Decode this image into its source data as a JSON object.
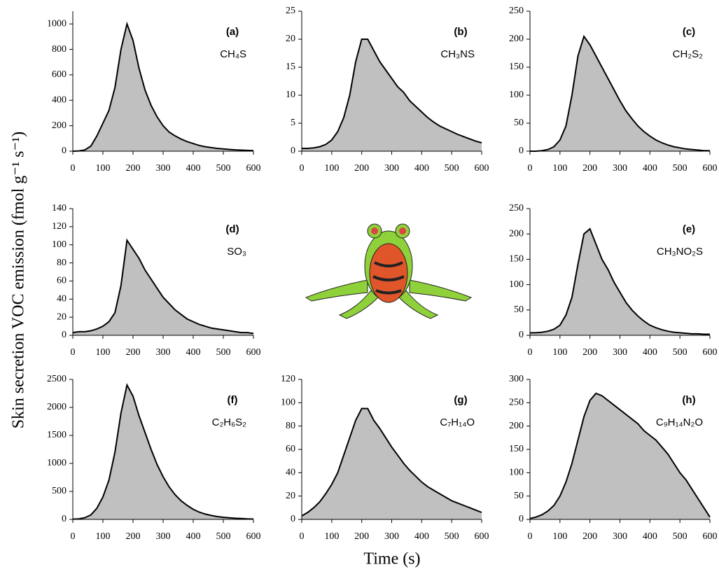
{
  "ylabel": "Skin secretion VOC emission (fmol g⁻¹ s⁻¹)",
  "xlabel": "Time (s)",
  "chart_data": [
    {
      "type": "area",
      "panel": "(a)",
      "label": "CH₄S",
      "color": "#c0c0c0",
      "line_color": "#000000",
      "x": [
        0,
        20,
        40,
        60,
        80,
        100,
        120,
        140,
        160,
        180,
        200,
        220,
        240,
        260,
        280,
        300,
        320,
        340,
        360,
        380,
        400,
        420,
        440,
        460,
        480,
        500,
        520,
        540,
        560,
        580,
        600
      ],
      "values": [
        0,
        2,
        10,
        40,
        120,
        220,
        320,
        500,
        800,
        1000,
        870,
        650,
        480,
        360,
        270,
        200,
        150,
        120,
        95,
        75,
        60,
        45,
        35,
        28,
        22,
        18,
        14,
        10,
        8,
        6,
        5
      ],
      "xlim": [
        0,
        600
      ],
      "xticks": [
        0,
        100,
        200,
        300,
        400,
        500,
        600
      ],
      "ylim": [
        0,
        1100
      ],
      "yticks": [
        0,
        200,
        400,
        600,
        800,
        1000
      ]
    },
    {
      "type": "area",
      "panel": "(b)",
      "label": "CH₃NS",
      "color": "#c0c0c0",
      "line_color": "#000000",
      "x": [
        0,
        20,
        40,
        60,
        80,
        100,
        120,
        140,
        160,
        180,
        200,
        220,
        240,
        260,
        280,
        300,
        320,
        340,
        360,
        380,
        400,
        420,
        440,
        460,
        480,
        500,
        520,
        540,
        560,
        580,
        600
      ],
      "values": [
        0.5,
        0.5,
        0.6,
        0.8,
        1.2,
        2,
        3.5,
        6,
        10,
        16,
        20,
        20,
        18,
        16,
        14.5,
        13,
        11.5,
        10.5,
        9,
        8,
        7,
        6,
        5.2,
        4.5,
        4,
        3.5,
        3,
        2.6,
        2.2,
        1.8,
        1.5
      ],
      "xlim": [
        0,
        600
      ],
      "xticks": [
        0,
        100,
        200,
        300,
        400,
        500,
        600
      ],
      "ylim": [
        0,
        25
      ],
      "yticks": [
        0,
        5,
        10,
        15,
        20,
        25
      ]
    },
    {
      "type": "area",
      "panel": "(c)",
      "label": "CH₂S₂",
      "color": "#c0c0c0",
      "line_color": "#000000",
      "x": [
        0,
        20,
        40,
        60,
        80,
        100,
        120,
        140,
        160,
        180,
        200,
        220,
        240,
        260,
        280,
        300,
        320,
        340,
        360,
        380,
        400,
        420,
        440,
        460,
        480,
        500,
        520,
        540,
        560,
        580,
        600
      ],
      "values": [
        0,
        0,
        1,
        3,
        8,
        20,
        45,
        100,
        170,
        205,
        190,
        170,
        150,
        130,
        110,
        90,
        72,
        58,
        45,
        35,
        27,
        20,
        15,
        11,
        8,
        6,
        4,
        3,
        2,
        1,
        1
      ],
      "xlim": [
        0,
        600
      ],
      "xticks": [
        0,
        100,
        200,
        300,
        400,
        500,
        600
      ],
      "ylim": [
        0,
        250
      ],
      "yticks": [
        0,
        50,
        100,
        150,
        200,
        250
      ]
    },
    {
      "type": "area",
      "panel": "(d)",
      "label": "SO₃",
      "color": "#c0c0c0",
      "line_color": "#000000",
      "x": [
        0,
        20,
        40,
        60,
        80,
        100,
        120,
        140,
        160,
        180,
        200,
        220,
        240,
        260,
        280,
        300,
        320,
        340,
        360,
        380,
        400,
        420,
        440,
        460,
        480,
        500,
        520,
        540,
        560,
        580,
        600
      ],
      "values": [
        3,
        4,
        4,
        5,
        7,
        10,
        15,
        25,
        55,
        105,
        95,
        85,
        72,
        62,
        52,
        42,
        35,
        28,
        23,
        18,
        15,
        12,
        10,
        8,
        7,
        6,
        5,
        4,
        3,
        3,
        2
      ],
      "xlim": [
        0,
        600
      ],
      "xticks": [
        0,
        100,
        200,
        300,
        400,
        500,
        600
      ],
      "ylim": [
        0,
        140
      ],
      "yticks": [
        0,
        20,
        40,
        60,
        80,
        100,
        120,
        140
      ]
    },
    {
      "type": "area",
      "panel": "(e)",
      "label": "CH₃NO₂S",
      "color": "#c0c0c0",
      "line_color": "#000000",
      "x": [
        0,
        20,
        40,
        60,
        80,
        100,
        120,
        140,
        160,
        180,
        200,
        220,
        240,
        260,
        280,
        300,
        320,
        340,
        360,
        380,
        400,
        420,
        440,
        460,
        480,
        500,
        520,
        540,
        560,
        580,
        600
      ],
      "values": [
        5,
        5,
        6,
        8,
        12,
        20,
        40,
        75,
        140,
        200,
        210,
        180,
        150,
        130,
        105,
        85,
        65,
        50,
        38,
        28,
        20,
        15,
        11,
        8,
        6,
        5,
        4,
        3,
        3,
        2,
        2
      ],
      "xlim": [
        0,
        600
      ],
      "xticks": [
        0,
        100,
        200,
        300,
        400,
        500,
        600
      ],
      "ylim": [
        0,
        250
      ],
      "yticks": [
        0,
        50,
        100,
        150,
        200,
        250
      ]
    },
    {
      "type": "area",
      "panel": "(f)",
      "label": "C₂H₆S₂",
      "color": "#c0c0c0",
      "line_color": "#000000",
      "x": [
        0,
        20,
        40,
        60,
        80,
        100,
        120,
        140,
        160,
        180,
        200,
        220,
        240,
        260,
        280,
        300,
        320,
        340,
        360,
        380,
        400,
        420,
        440,
        460,
        480,
        500,
        520,
        540,
        560,
        580,
        600
      ],
      "values": [
        5,
        10,
        30,
        80,
        200,
        400,
        700,
        1200,
        1900,
        2400,
        2200,
        1850,
        1550,
        1250,
        980,
        760,
        580,
        440,
        330,
        250,
        180,
        130,
        95,
        70,
        50,
        38,
        28,
        20,
        15,
        10,
        8
      ],
      "xlim": [
        0,
        600
      ],
      "xticks": [
        0,
        100,
        200,
        300,
        400,
        500,
        600
      ],
      "ylim": [
        0,
        2500
      ],
      "yticks": [
        0,
        500,
        1000,
        1500,
        2000,
        2500
      ]
    },
    {
      "type": "area",
      "panel": "(g)",
      "label": "C₇H₁₄O",
      "color": "#c0c0c0",
      "line_color": "#000000",
      "x": [
        0,
        20,
        40,
        60,
        80,
        100,
        120,
        140,
        160,
        180,
        200,
        220,
        240,
        260,
        280,
        300,
        320,
        340,
        360,
        380,
        400,
        420,
        440,
        460,
        480,
        500,
        520,
        540,
        560,
        580,
        600
      ],
      "values": [
        3,
        6,
        10,
        15,
        22,
        30,
        40,
        55,
        70,
        85,
        95,
        95,
        85,
        78,
        70,
        62,
        55,
        48,
        42,
        37,
        32,
        28,
        25,
        22,
        19,
        16,
        14,
        12,
        10,
        8,
        6
      ],
      "xlim": [
        0,
        600
      ],
      "xticks": [
        0,
        100,
        200,
        300,
        400,
        500,
        600
      ],
      "ylim": [
        0,
        120
      ],
      "yticks": [
        0,
        20,
        40,
        60,
        80,
        100,
        120
      ]
    },
    {
      "type": "area",
      "panel": "(h)",
      "label": "C₉H₁₄N₂O",
      "color": "#c0c0c0",
      "line_color": "#000000",
      "x": [
        0,
        20,
        40,
        60,
        80,
        100,
        120,
        140,
        160,
        180,
        200,
        220,
        240,
        260,
        280,
        300,
        320,
        340,
        360,
        380,
        400,
        420,
        440,
        460,
        480,
        500,
        520,
        540,
        560,
        580,
        600
      ],
      "values": [
        2,
        5,
        10,
        18,
        30,
        50,
        80,
        120,
        170,
        220,
        255,
        270,
        265,
        255,
        245,
        235,
        225,
        215,
        205,
        190,
        180,
        170,
        155,
        140,
        120,
        100,
        85,
        65,
        45,
        25,
        5
      ],
      "xlim": [
        0,
        600
      ],
      "xticks": [
        0,
        100,
        200,
        300,
        400,
        500,
        600
      ],
      "ylim": [
        0,
        300
      ],
      "yticks": [
        0,
        50,
        100,
        150,
        200,
        250,
        300
      ]
    }
  ]
}
